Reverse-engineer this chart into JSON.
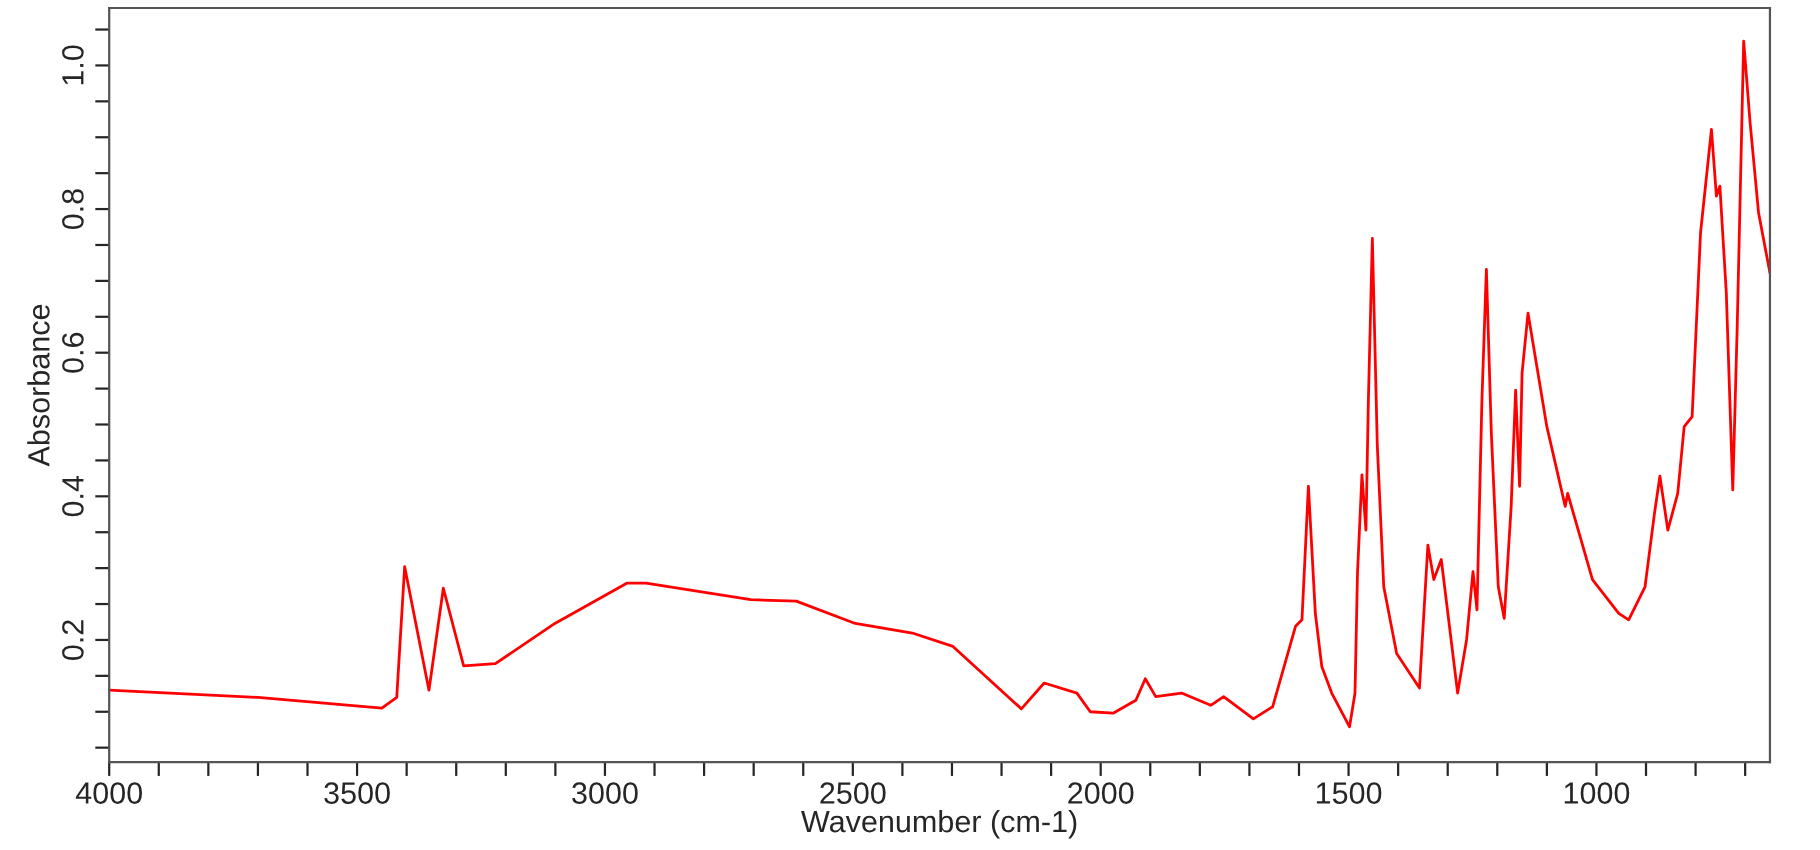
{
  "chart_data": {
    "type": "line",
    "xlabel": "Wavenumber (cm-1)",
    "ylabel": "Absorbance",
    "x": [
      4000,
      3700,
      3450,
      3420,
      3404,
      3355,
      3326,
      3285,
      3221,
      3101,
      2956,
      2917,
      2706,
      2614,
      2495,
      2377,
      2298,
      2160,
      2114,
      2048,
      2021,
      1975,
      1929,
      1910,
      1889,
      1837,
      1778,
      1752,
      1692,
      1653,
      1607,
      1594,
      1581,
      1567,
      1554,
      1534,
      1498,
      1487,
      1482,
      1473,
      1465,
      1460,
      1452,
      1442,
      1429,
      1403,
      1357,
      1340,
      1328,
      1313,
      1280,
      1262,
      1249,
      1241,
      1231,
      1222,
      1212,
      1198,
      1186,
      1172,
      1163,
      1155,
      1150,
      1138,
      1100,
      1063,
      1058,
      1008,
      955,
      935,
      902,
      883,
      872,
      856,
      836,
      823,
      807,
      790,
      768,
      758,
      751,
      738,
      725,
      716,
      703,
      690,
      673,
      650
    ],
    "series": [
      {
        "color": "#ff0000",
        "values": [
          0.13,
          0.12,
          0.105,
          0.12,
          0.302,
          0.13,
          0.272,
          0.164,
          0.167,
          0.223,
          0.279,
          0.279,
          0.256,
          0.254,
          0.223,
          0.209,
          0.191,
          0.104,
          0.14,
          0.126,
          0.1,
          0.098,
          0.116,
          0.146,
          0.121,
          0.126,
          0.109,
          0.121,
          0.09,
          0.107,
          0.219,
          0.228,
          0.414,
          0.237,
          0.163,
          0.126,
          0.079,
          0.126,
          0.293,
          0.43,
          0.353,
          0.534,
          0.759,
          0.47,
          0.274,
          0.181,
          0.133,
          0.332,
          0.284,
          0.312,
          0.126,
          0.2,
          0.295,
          0.242,
          0.534,
          0.716,
          0.488,
          0.274,
          0.23,
          0.386,
          0.548,
          0.414,
          0.572,
          0.655,
          0.497,
          0.386,
          0.404,
          0.284,
          0.237,
          0.228,
          0.274,
          0.376,
          0.428,
          0.353,
          0.404,
          0.497,
          0.511,
          0.767,
          0.911,
          0.818,
          0.832,
          0.683,
          0.409,
          0.637,
          1.034,
          0.92,
          0.795,
          0.711
        ]
      }
    ],
    "xlim": [
      4000,
      650
    ],
    "ylim": [
      0.03,
      1.08
    ],
    "xticks": [
      4000,
      {
        "value": 3900,
        "label": null
      },
      {
        "value": 3800,
        "label": null
      },
      {
        "value": 3700,
        "label": null
      },
      {
        "value": 3600,
        "label": null
      },
      3500,
      {
        "value": 3400,
        "label": null
      },
      {
        "value": 3300,
        "label": null
      },
      {
        "value": 3200,
        "label": null
      },
      {
        "value": 3100,
        "label": null
      },
      3000,
      {
        "value": 2900,
        "label": null
      },
      {
        "value": 2800,
        "label": null
      },
      {
        "value": 2700,
        "label": null
      },
      {
        "value": 2600,
        "label": null
      },
      2500,
      {
        "value": 2400,
        "label": null
      },
      {
        "value": 2300,
        "label": null
      },
      {
        "value": 2200,
        "label": null
      },
      {
        "value": 2100,
        "label": null
      },
      2000,
      {
        "value": 1900,
        "label": null
      },
      {
        "value": 1800,
        "label": null
      },
      {
        "value": 1700,
        "label": null
      },
      {
        "value": 1600,
        "label": null
      },
      1500,
      {
        "value": 1400,
        "label": null
      },
      {
        "value": 1300,
        "label": null
      },
      {
        "value": 1200,
        "label": null
      },
      {
        "value": 1100,
        "label": null
      },
      1000,
      {
        "value": 900,
        "label": null
      },
      {
        "value": 800,
        "label": null
      },
      {
        "value": 700,
        "label": null
      }
    ],
    "yticks": [
      {
        "value": 0.05,
        "label": null
      },
      {
        "value": 0.1,
        "label": null
      },
      {
        "value": 0.15,
        "label": null
      },
      0.2,
      {
        "value": 0.25,
        "label": null
      },
      {
        "value": 0.3,
        "label": null
      },
      {
        "value": 0.35,
        "label": null
      },
      0.4,
      {
        "value": 0.45,
        "label": null
      },
      {
        "value": 0.5,
        "label": null
      },
      {
        "value": 0.55,
        "label": null
      },
      0.6,
      {
        "value": 0.65,
        "label": null
      },
      {
        "value": 0.7,
        "label": null
      },
      {
        "value": 0.75,
        "label": null
      },
      0.8,
      {
        "value": 0.85,
        "label": null
      },
      {
        "value": 0.9,
        "label": null
      },
      {
        "value": 0.95,
        "label": null
      },
      {
        "value": 1.0,
        "label": "1.0"
      },
      {
        "value": 1.05,
        "label": null
      }
    ],
    "grid": false,
    "legend": false,
    "marker": "none",
    "line_style": "solid"
  }
}
